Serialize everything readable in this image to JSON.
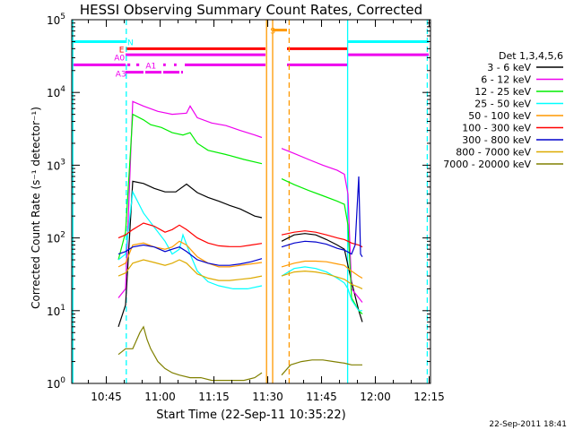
{
  "chart_data": {
    "type": "line",
    "title": "HESSI Observing Summary Count Rates, Corrected",
    "xlabel": "Start Time (22-Sep-11 10:35:22)",
    "ylabel": "Corrected Count Rate (s⁻¹ detector⁻¹)",
    "x_unit": "minutes after 10:35:22",
    "xlim": [
      0,
      100
    ],
    "ylim": [
      1,
      100000
    ],
    "y_scale": "log",
    "x_ticks": [
      {
        "value": 9.63,
        "label": "10:45"
      },
      {
        "value": 24.63,
        "label": "11:00"
      },
      {
        "value": 39.63,
        "label": "11:15"
      },
      {
        "value": 54.63,
        "label": "11:30"
      },
      {
        "value": 69.63,
        "label": "11:45"
      },
      {
        "value": 84.63,
        "label": "12:00"
      },
      {
        "value": 99.63,
        "label": "12:15"
      }
    ],
    "y_ticks": [
      {
        "value": 1,
        "base": "10",
        "exp": "0"
      },
      {
        "value": 10,
        "base": "10",
        "exp": "1"
      },
      {
        "value": 100,
        "base": "10",
        "exp": "2"
      },
      {
        "value": 1000,
        "base": "10",
        "exp": "3"
      },
      {
        "value": 10000,
        "base": "10",
        "exp": "4"
      },
      {
        "value": 100000,
        "base": "10",
        "exp": "5"
      }
    ],
    "legend": {
      "title": "Det 1,3,4,5,6",
      "position": "right"
    },
    "series": [
      {
        "name": "3 - 6 keV",
        "color": "#000000",
        "points": [
          [
            13,
            6
          ],
          [
            15,
            12
          ],
          [
            17,
            600
          ],
          [
            20,
            560
          ],
          [
            23,
            480
          ],
          [
            26,
            430
          ],
          [
            29,
            430
          ],
          [
            32,
            550
          ],
          [
            35,
            420
          ],
          [
            38,
            360
          ],
          [
            41,
            320
          ],
          [
            44,
            280
          ],
          [
            47,
            250
          ],
          [
            51,
            200
          ],
          [
            53,
            190
          ],
          null,
          [
            58.5,
            90
          ],
          [
            62,
            110
          ],
          [
            65,
            115
          ],
          [
            68,
            110
          ],
          [
            71,
            95
          ],
          [
            74,
            80
          ],
          [
            76,
            70
          ],
          [
            78,
            25
          ],
          [
            80,
            10
          ],
          [
            81,
            7
          ]
        ]
      },
      {
        "name": "6 - 12 keV",
        "color": "#ee00ee",
        "points": [
          [
            13,
            15
          ],
          [
            15,
            20
          ],
          [
            17,
            7500
          ],
          [
            20,
            6500
          ],
          [
            24,
            5500
          ],
          [
            28,
            5000
          ],
          [
            32,
            5200
          ],
          [
            33,
            6500
          ],
          [
            35,
            4500
          ],
          [
            39,
            3800
          ],
          [
            43,
            3500
          ],
          [
            47,
            3000
          ],
          [
            51,
            2600
          ],
          [
            53,
            2400
          ],
          null,
          [
            58.5,
            1700
          ],
          [
            62,
            1450
          ],
          [
            66,
            1200
          ],
          [
            70,
            1000
          ],
          [
            74,
            850
          ],
          [
            76,
            750
          ],
          [
            77,
            400
          ],
          [
            78,
            20
          ],
          [
            80,
            15
          ],
          [
            81,
            13
          ]
        ]
      },
      {
        "name": "12 - 25 keV",
        "color": "#00ee00",
        "points": [
          [
            13,
            50
          ],
          [
            15,
            120
          ],
          [
            17,
            5000
          ],
          [
            20,
            4200
          ],
          [
            22,
            3600
          ],
          [
            25,
            3300
          ],
          [
            28,
            2800
          ],
          [
            31,
            2600
          ],
          [
            33,
            2800
          ],
          [
            35,
            2000
          ],
          [
            38,
            1600
          ],
          [
            43,
            1400
          ],
          [
            48,
            1200
          ],
          [
            53,
            1050
          ],
          null,
          [
            58.5,
            650
          ],
          [
            62,
            540
          ],
          [
            66,
            450
          ],
          [
            70,
            380
          ],
          [
            74,
            320
          ],
          [
            76,
            290
          ],
          [
            77,
            150
          ],
          [
            78,
            15
          ],
          [
            80,
            10
          ],
          [
            81,
            9
          ]
        ]
      },
      {
        "name": "25 - 50 keV",
        "color": "#00ffff",
        "points": [
          [
            13,
            50
          ],
          [
            15,
            60
          ],
          [
            17,
            430
          ],
          [
            20,
            220
          ],
          [
            23,
            140
          ],
          [
            26,
            90
          ],
          [
            28,
            60
          ],
          [
            30,
            70
          ],
          [
            31,
            110
          ],
          [
            33,
            60
          ],
          [
            35,
            35
          ],
          [
            38,
            25
          ],
          [
            41,
            22
          ],
          [
            45,
            20
          ],
          [
            49,
            20
          ],
          [
            53,
            22
          ],
          null,
          [
            58.5,
            30
          ],
          [
            62,
            38
          ],
          [
            65,
            40
          ],
          [
            68,
            38
          ],
          [
            71,
            34
          ],
          [
            74,
            28
          ],
          [
            76,
            24
          ],
          [
            77,
            20
          ],
          [
            78,
            14
          ],
          [
            80,
            10
          ],
          [
            81,
            10
          ]
        ]
      },
      {
        "name": "50 - 100 keV",
        "color": "#ff9900",
        "points": [
          [
            13,
            40
          ],
          [
            15,
            45
          ],
          [
            17,
            80
          ],
          [
            20,
            85
          ],
          [
            23,
            75
          ],
          [
            26,
            70
          ],
          [
            28,
            75
          ],
          [
            30,
            90
          ],
          [
            32,
            80
          ],
          [
            35,
            55
          ],
          [
            38,
            45
          ],
          [
            41,
            40
          ],
          [
            44,
            40
          ],
          [
            47,
            42
          ],
          [
            50,
            44
          ],
          [
            53,
            46
          ],
          null,
          [
            58.5,
            40
          ],
          [
            62,
            45
          ],
          [
            65,
            48
          ],
          [
            68,
            48
          ],
          [
            71,
            47
          ],
          [
            74,
            44
          ],
          [
            76,
            42
          ],
          [
            77,
            38
          ],
          [
            78,
            35
          ],
          [
            80,
            30
          ],
          [
            81,
            28
          ]
        ]
      },
      {
        "name": "100 - 300 keV",
        "color": "#ff0000",
        "points": [
          [
            13,
            100
          ],
          [
            15,
            110
          ],
          [
            17,
            130
          ],
          [
            20,
            160
          ],
          [
            23,
            145
          ],
          [
            26,
            120
          ],
          [
            28,
            130
          ],
          [
            30,
            150
          ],
          [
            32,
            130
          ],
          [
            35,
            100
          ],
          [
            38,
            85
          ],
          [
            41,
            78
          ],
          [
            44,
            76
          ],
          [
            47,
            76
          ],
          [
            50,
            80
          ],
          [
            53,
            84
          ],
          null,
          [
            58.5,
            110
          ],
          [
            62,
            120
          ],
          [
            65,
            125
          ],
          [
            68,
            120
          ],
          [
            71,
            110
          ],
          [
            74,
            100
          ],
          [
            76,
            95
          ],
          [
            77,
            90
          ],
          [
            78,
            85
          ],
          [
            80,
            80
          ],
          [
            81,
            75
          ]
        ]
      },
      {
        "name": "300 - 800 keV",
        "color": "#0000cc",
        "points": [
          [
            13,
            60
          ],
          [
            15,
            65
          ],
          [
            17,
            75
          ],
          [
            20,
            80
          ],
          [
            23,
            75
          ],
          [
            26,
            65
          ],
          [
            28,
            70
          ],
          [
            30,
            75
          ],
          [
            32,
            65
          ],
          [
            35,
            50
          ],
          [
            38,
            45
          ],
          [
            41,
            42
          ],
          [
            44,
            42
          ],
          [
            47,
            44
          ],
          [
            50,
            47
          ],
          [
            53,
            52
          ],
          null,
          [
            58.5,
            75
          ],
          [
            62,
            85
          ],
          [
            65,
            90
          ],
          [
            68,
            88
          ],
          [
            71,
            82
          ],
          [
            74,
            72
          ],
          [
            76,
            68
          ],
          [
            77,
            64
          ],
          [
            78,
            60
          ],
          [
            79,
            80
          ],
          [
            80,
            700
          ],
          [
            80.5,
            60
          ],
          [
            81,
            55
          ]
        ]
      },
      {
        "name": "800 - 7000 keV",
        "color": "#ddaa00",
        "points": [
          [
            13,
            30
          ],
          [
            15,
            33
          ],
          [
            17,
            45
          ],
          [
            20,
            50
          ],
          [
            23,
            46
          ],
          [
            26,
            42
          ],
          [
            28,
            45
          ],
          [
            30,
            50
          ],
          [
            32,
            45
          ],
          [
            35,
            32
          ],
          [
            38,
            28
          ],
          [
            41,
            26
          ],
          [
            44,
            26
          ],
          [
            47,
            27
          ],
          [
            50,
            28
          ],
          [
            53,
            30
          ],
          null,
          [
            58.5,
            30
          ],
          [
            62,
            34
          ],
          [
            65,
            35
          ],
          [
            68,
            34
          ],
          [
            71,
            32
          ],
          [
            74,
            29
          ],
          [
            76,
            27
          ],
          [
            77,
            25
          ],
          [
            78,
            23
          ],
          [
            80,
            21
          ],
          [
            81,
            20
          ]
        ]
      },
      {
        "name": "7000 - 20000 keV",
        "color": "#808000",
        "points": [
          [
            13,
            2.5
          ],
          [
            15,
            3
          ],
          [
            17,
            3
          ],
          [
            19,
            5
          ],
          [
            20,
            6
          ],
          [
            21,
            4
          ],
          [
            22,
            3
          ],
          [
            24,
            2
          ],
          [
            26,
            1.6
          ],
          [
            28,
            1.4
          ],
          [
            30,
            1.3
          ],
          [
            33,
            1.2
          ],
          [
            36,
            1.2
          ],
          [
            39,
            1.1
          ],
          [
            42,
            1.1
          ],
          [
            45,
            1.1
          ],
          [
            48,
            1.1
          ],
          [
            51,
            1.2
          ],
          [
            53,
            1.4
          ],
          null,
          [
            58.5,
            1.3
          ],
          [
            61,
            1.8
          ],
          [
            64,
            2
          ],
          [
            67,
            2.1
          ],
          [
            70,
            2.1
          ],
          [
            73,
            2
          ],
          [
            76,
            1.9
          ],
          [
            78,
            1.8
          ],
          [
            80,
            1.8
          ],
          [
            81,
            1.8
          ]
        ]
      }
    ],
    "flag_bars": [
      {
        "label": "N",
        "color": "#00ffff",
        "y": 50000,
        "segments": [
          [
            0,
            15
          ],
          [
            77,
            99.5
          ]
        ]
      },
      {
        "label": "S",
        "color": "#ff9900",
        "y": 72000,
        "segments": [
          [
            56,
            60
          ]
        ]
      },
      {
        "label": "E",
        "color": "#ff0000",
        "y": 40000,
        "segments": [
          [
            15,
            54
          ],
          [
            60,
            77
          ]
        ]
      },
      {
        "label": "A0",
        "color": "#ee00ee",
        "y": 33000,
        "segments": [
          [
            15,
            54
          ],
          [
            77,
            99.5
          ]
        ]
      },
      {
        "label": "A0",
        "color": "#ee00ee",
        "y": 24000,
        "segments": [
          [
            0,
            15
          ]
        ]
      },
      {
        "label": "A1",
        "color": "#ee00ee",
        "y": 24000,
        "segments": [
          [
            15.5,
            16.3
          ],
          [
            18,
            18.8
          ],
          [
            25.5,
            26.2
          ],
          [
            28.5,
            29.2
          ],
          [
            31.5,
            54
          ],
          [
            60,
            77
          ]
        ]
      },
      {
        "label": "A3",
        "color": "#ee00ee",
        "y": 19000,
        "segments": [
          [
            15,
            20
          ],
          [
            20.5,
            25
          ],
          [
            25.5,
            30
          ],
          [
            30.5,
            31
          ]
        ]
      }
    ],
    "flag_labels": [
      {
        "text": "N",
        "color": "#00ffff",
        "x": 15.5,
        "y": 50000
      },
      {
        "text": "S",
        "color": "#ff9900",
        "x": 55.3,
        "y": 72000
      },
      {
        "text": "E",
        "color": "#ff0000",
        "x": 13.2,
        "y": 40000
      },
      {
        "text": "A0",
        "color": "#ee00ee",
        "x": 11.8,
        "y": 31000
      },
      {
        "text": "A1",
        "color": "#ee00ee",
        "x": 20.6,
        "y": 24000
      },
      {
        "text": "A3",
        "color": "#ee00ee",
        "x": 12.2,
        "y": 18500
      }
    ],
    "vertical_lines": [
      {
        "x": 0.3,
        "color": "#00ffff",
        "style": "solid"
      },
      {
        "x": 15.2,
        "color": "#00ffff",
        "style": "dashed"
      },
      {
        "x": 54.3,
        "color": "#ff9900",
        "style": "solid"
      },
      {
        "x": 56.0,
        "color": "#ff9900",
        "style": "solid"
      },
      {
        "x": 60.6,
        "color": "#ff9900",
        "style": "dashed"
      },
      {
        "x": 76.9,
        "color": "#00ffff",
        "style": "solid"
      },
      {
        "x": 99.1,
        "color": "#00ffff",
        "style": "dashed"
      }
    ]
  },
  "footer": {
    "timestamp": "22-Sep-2011 18:41"
  }
}
